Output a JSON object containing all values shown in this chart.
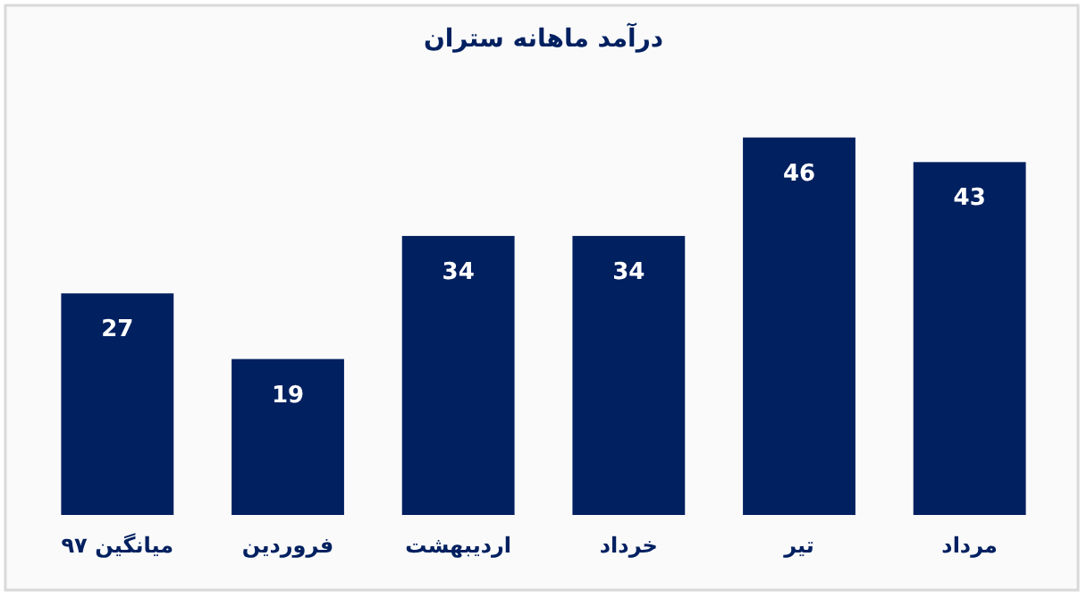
{
  "chart_data": {
    "type": "bar",
    "title": "درآمد ماهانه ستران",
    "categories": [
      "میانگین ۹۷",
      "فروردین",
      "اردیبهشت",
      "خرداد",
      "تیر",
      "مرداد"
    ],
    "values": [
      27,
      19,
      34,
      34,
      46,
      43
    ],
    "color": "#002060",
    "data_labels": true
  }
}
